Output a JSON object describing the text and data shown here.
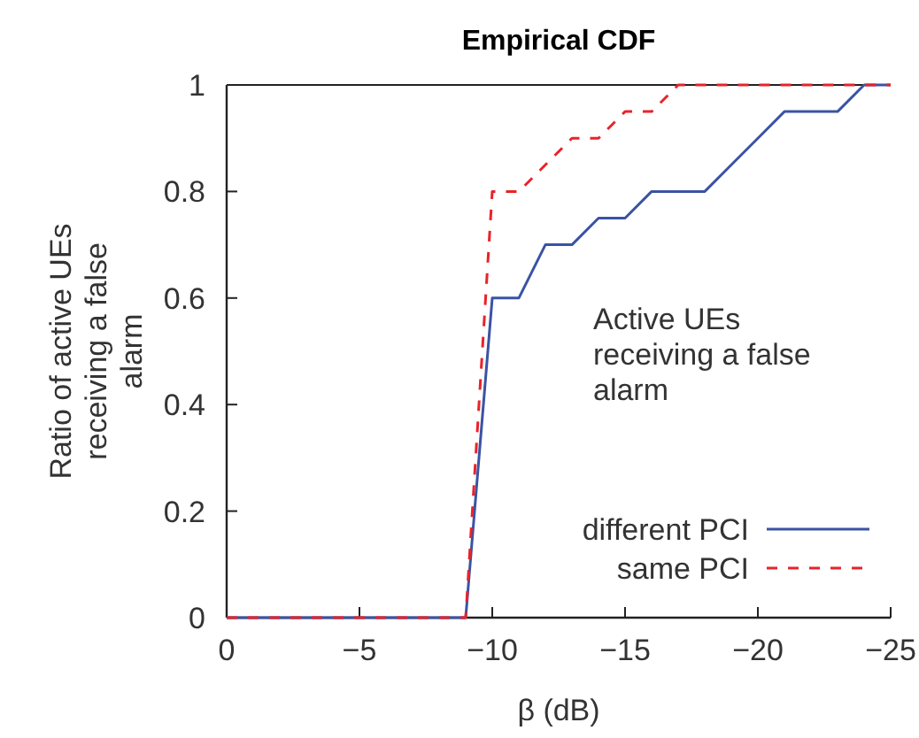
{
  "chart_data": {
    "type": "line",
    "title": "Empirical CDF",
    "xlabel": "β (dB)",
    "ylabel": "Ratio of active UEs receiving a false alarm",
    "x": [
      0,
      -9,
      -10,
      -11,
      -12,
      -13,
      -14,
      -15,
      -16,
      -17,
      -18,
      -19,
      -20,
      -21,
      -22,
      -23,
      -24,
      -25
    ],
    "series": [
      {
        "name": "different PCI",
        "color": "#3a53a4",
        "line_style": "solid",
        "values": [
          0,
          0,
          0.6,
          0.6,
          0.7,
          0.7,
          0.75,
          0.75,
          0.8,
          0.8,
          0.8,
          0.85,
          0.9,
          0.95,
          0.95,
          0.95,
          1,
          1
        ]
      },
      {
        "name": "same PCI",
        "color": "#e8232a",
        "line_style": "dashed",
        "values": [
          0,
          0,
          0.8,
          0.8,
          0.85,
          0.9,
          0.9,
          0.95,
          0.95,
          1,
          1,
          1,
          1,
          1,
          1,
          1,
          1,
          1
        ]
      }
    ],
    "xlim": [
      0,
      -25
    ],
    "xticks": [
      0,
      -5,
      -10,
      -15,
      -20,
      -25
    ],
    "ylim": [
      0,
      1
    ],
    "yticks": [
      0,
      0.2,
      0.4,
      0.6,
      0.8,
      1
    ],
    "annotations": [
      "Active UEs receiving a false alarm"
    ],
    "legend": "bottom right",
    "grid": false,
    "marker": "none"
  }
}
